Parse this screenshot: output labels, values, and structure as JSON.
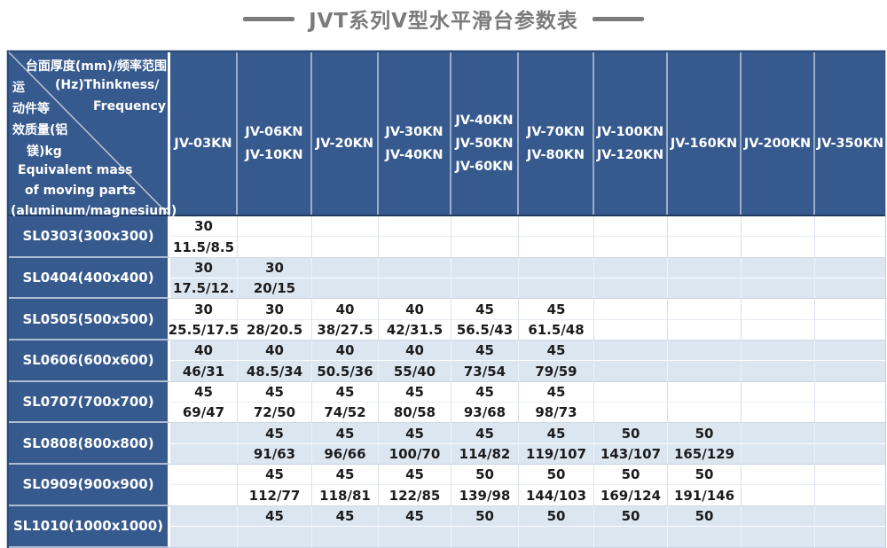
{
  "title": {
    "text": "JVT系列V型水平滑台参数表"
  },
  "colors": {
    "header_blue": "#375a8e",
    "row_alt_blue": "#dce6f1",
    "row_white": "#ffffff",
    "title_gray": "#7b7b7b",
    "data_text": "#1c1c1c",
    "dark_edge": "#2a4a78"
  },
  "corner": {
    "top_cn": "台面厚度(mm)/频率范围",
    "left_cn_1": "运",
    "top_en_1": "(Hz)Thinkness/",
    "left_cn_2": "动件等",
    "top_en_2": "Frequency",
    "left_cn_3": "效质量(铝",
    "left_cn_4": "镁)kg",
    "bottom_en_1": "Equivalent mass",
    "bottom_en_2": "of moving parts",
    "bottom_en_3": "(aluminum/magnesium)"
  },
  "columns": [
    {
      "lines": [
        "JV-03KN"
      ]
    },
    {
      "lines": [
        "JV-06KN",
        "JV-10KN"
      ]
    },
    {
      "lines": [
        "JV-20KN"
      ]
    },
    {
      "lines": [
        "JV-30KN",
        "JV-40KN"
      ]
    },
    {
      "lines": [
        "JV-40KN",
        "JV-50KN",
        "JV-60KN"
      ]
    },
    {
      "lines": [
        "JV-70KN",
        "JV-80KN"
      ]
    },
    {
      "lines": [
        "JV-100KN",
        "JV-120KN"
      ]
    },
    {
      "lines": [
        "JV-160KN"
      ]
    },
    {
      "lines": [
        "JV-200KN"
      ]
    },
    {
      "lines": [
        "JV-350KN"
      ]
    }
  ],
  "rows": [
    {
      "model": "SL0303(300x300)",
      "cells": [
        [
          "30",
          "11.5/8.5"
        ],
        [
          "",
          ""
        ],
        [
          "",
          ""
        ],
        [
          "",
          ""
        ],
        [
          "",
          ""
        ],
        [
          "",
          ""
        ],
        [
          "",
          ""
        ],
        [
          "",
          ""
        ],
        [
          "",
          ""
        ],
        [
          "",
          ""
        ]
      ]
    },
    {
      "model": "SL0404(400x400)",
      "cells": [
        [
          "30",
          "17.5/12."
        ],
        [
          "30",
          "20/15"
        ],
        [
          "",
          ""
        ],
        [
          "",
          ""
        ],
        [
          "",
          ""
        ],
        [
          "",
          ""
        ],
        [
          "",
          ""
        ],
        [
          "",
          ""
        ],
        [
          "",
          ""
        ],
        [
          "",
          ""
        ]
      ]
    },
    {
      "model": "SL0505(500x500)",
      "cells": [
        [
          "30",
          "25.5/17.5"
        ],
        [
          "30",
          "28/20.5"
        ],
        [
          "40",
          "38/27.5"
        ],
        [
          "40",
          "42/31.5"
        ],
        [
          "45",
          "56.5/43"
        ],
        [
          "45",
          "61.5/48"
        ],
        [
          "",
          ""
        ],
        [
          "",
          ""
        ],
        [
          "",
          ""
        ],
        [
          "",
          ""
        ]
      ]
    },
    {
      "model": "SL0606(600x600)",
      "cells": [
        [
          "40",
          "46/31"
        ],
        [
          "40",
          "48.5/34"
        ],
        [
          "40",
          "50.5/36"
        ],
        [
          "40",
          "55/40"
        ],
        [
          "45",
          "73/54"
        ],
        [
          "45",
          "79/59"
        ],
        [
          "",
          ""
        ],
        [
          "",
          ""
        ],
        [
          "",
          ""
        ],
        [
          "",
          ""
        ]
      ]
    },
    {
      "model": "SL0707(700x700)",
      "cells": [
        [
          "45",
          "69/47"
        ],
        [
          "45",
          "72/50"
        ],
        [
          "45",
          "74/52"
        ],
        [
          "45",
          "80/58"
        ],
        [
          "45",
          "93/68"
        ],
        [
          "45",
          "98/73"
        ],
        [
          "",
          ""
        ],
        [
          "",
          ""
        ],
        [
          "",
          ""
        ],
        [
          "",
          ""
        ]
      ]
    },
    {
      "model": "SL0808(800x800)",
      "cells": [
        [
          "",
          ""
        ],
        [
          "45",
          "91/63"
        ],
        [
          "45",
          "96/66"
        ],
        [
          "45",
          "100/70"
        ],
        [
          "45",
          "114/82"
        ],
        [
          "45",
          "119/107"
        ],
        [
          "50",
          "143/107"
        ],
        [
          "50",
          "165/129"
        ],
        [
          "",
          ""
        ],
        [
          "",
          ""
        ]
      ]
    },
    {
      "model": "SL0909(900x900)",
      "cells": [
        [
          "",
          ""
        ],
        [
          "45",
          "112/77"
        ],
        [
          "45",
          "118/81"
        ],
        [
          "45",
          "122/85"
        ],
        [
          "50",
          "139/98"
        ],
        [
          "50",
          "144/103"
        ],
        [
          "50",
          "169/124"
        ],
        [
          "50",
          "191/146"
        ],
        [
          "",
          ""
        ],
        [
          "",
          ""
        ]
      ]
    },
    {
      "model": "SL1010(1000x1000)",
      "cells": [
        [
          "",
          ""
        ],
        [
          "45",
          ""
        ],
        [
          "45",
          ""
        ],
        [
          "45",
          ""
        ],
        [
          "50",
          ""
        ],
        [
          "50",
          ""
        ],
        [
          "50",
          ""
        ],
        [
          "50",
          ""
        ],
        [
          "",
          ""
        ],
        [
          "",
          ""
        ]
      ]
    }
  ]
}
